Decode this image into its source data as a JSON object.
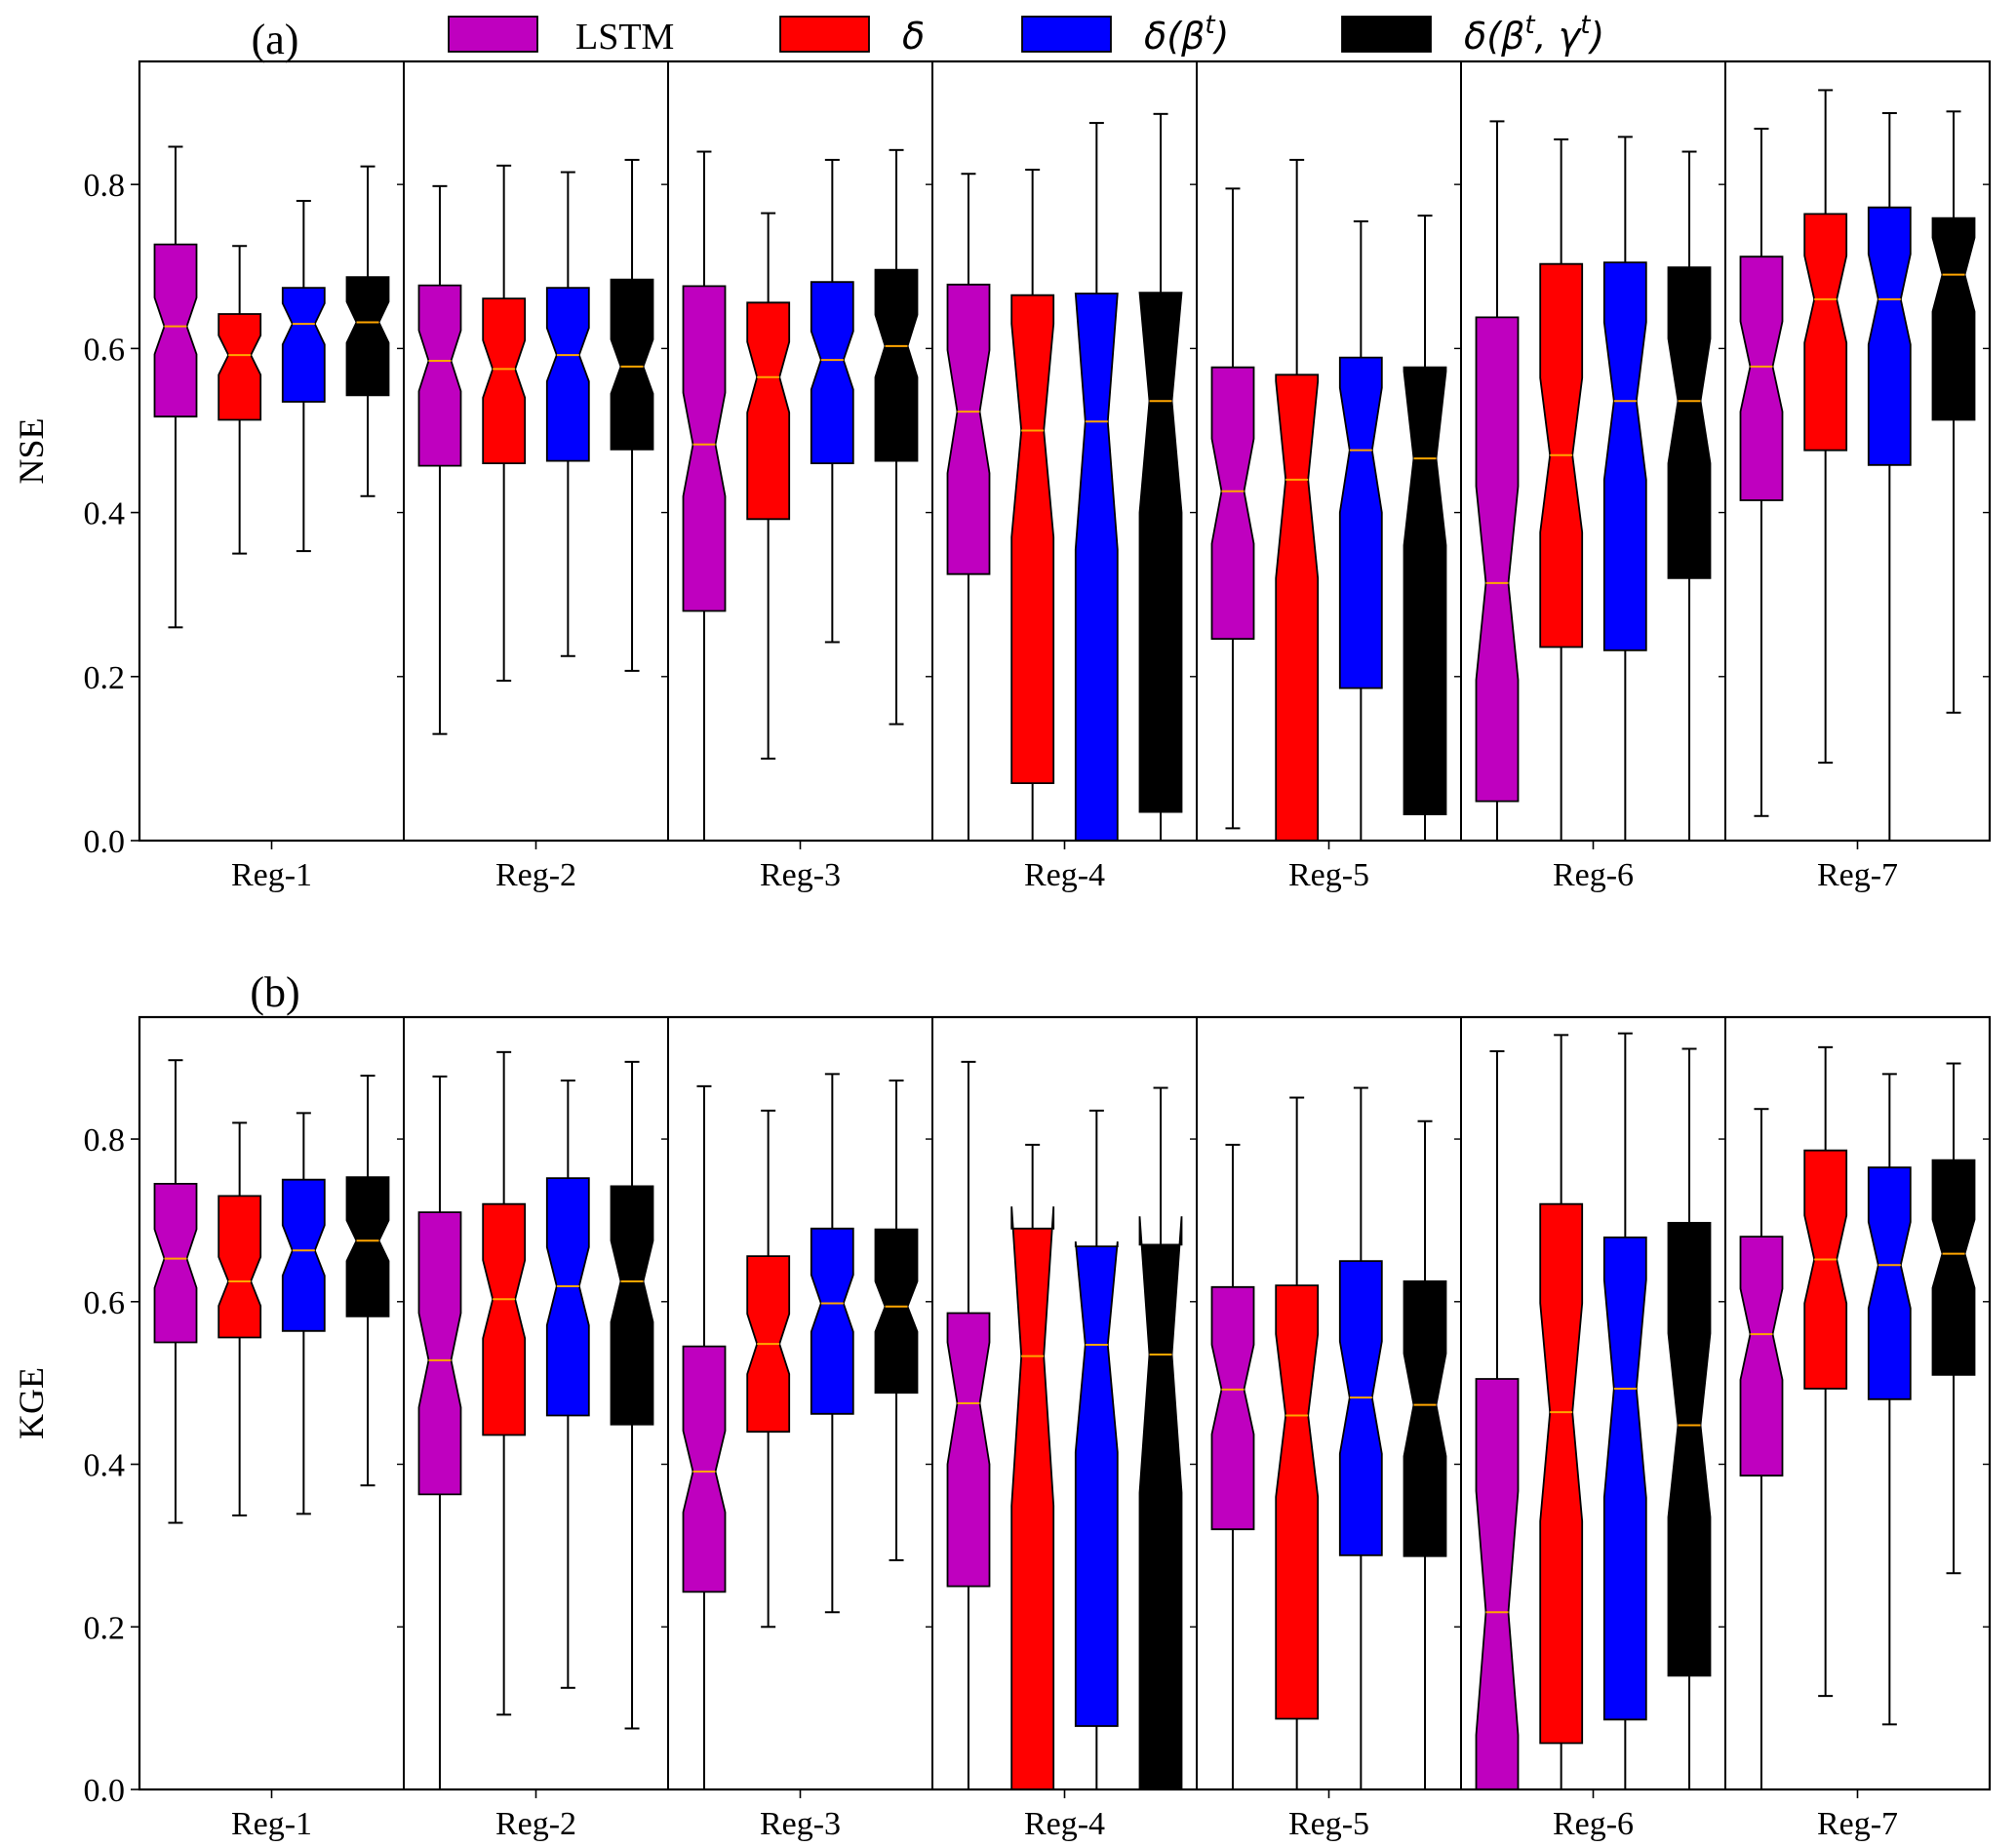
{
  "chart_data": [
    {
      "type": "boxplot",
      "panel_label": "(a)",
      "ylabel": "NSE",
      "ylim": [
        0.0,
        0.95
      ],
      "yticks": [
        "0.0",
        "0.2",
        "0.4",
        "0.6",
        "0.8"
      ],
      "categories": [
        "Reg-1",
        "Reg-2",
        "Reg-3",
        "Reg-4",
        "Reg-5",
        "Reg-6",
        "Reg-7"
      ],
      "series": [
        {
          "name": "LSTM",
          "color": "#bf00bf",
          "boxes": [
            {
              "whislo": 0.26,
              "q1": 0.517,
              "med": 0.627,
              "q3": 0.727,
              "whishi": 0.846,
              "ci": [
                0.593,
                0.662
              ]
            },
            {
              "whislo": 0.13,
              "q1": 0.457,
              "med": 0.585,
              "q3": 0.677,
              "whishi": 0.798,
              "ci": [
                0.548,
                0.622
              ]
            },
            {
              "whislo": 0.0,
              "q1": 0.28,
              "med": 0.483,
              "q3": 0.676,
              "whishi": 0.84,
              "ci": [
                0.42,
                0.546
              ]
            },
            {
              "whislo": 0.0,
              "q1": 0.325,
              "med": 0.523,
              "q3": 0.678,
              "whishi": 0.813,
              "ci": [
                0.448,
                0.598
              ]
            },
            {
              "whislo": 0.015,
              "q1": 0.246,
              "med": 0.426,
              "q3": 0.577,
              "whishi": 0.795,
              "ci": [
                0.362,
                0.49
              ]
            },
            {
              "whislo": 0.0,
              "q1": 0.048,
              "med": 0.314,
              "q3": 0.638,
              "whishi": 0.877,
              "ci": [
                0.196,
                0.432
              ]
            },
            {
              "whislo": 0.03,
              "q1": 0.415,
              "med": 0.578,
              "q3": 0.712,
              "whishi": 0.868,
              "ci": [
                0.523,
                0.633
              ]
            }
          ]
        },
        {
          "name": "δ",
          "color": "#ff0000",
          "boxes": [
            {
              "whislo": 0.35,
              "q1": 0.513,
              "med": 0.592,
              "q3": 0.642,
              "whishi": 0.725,
              "ci": [
                0.568,
                0.616
              ]
            },
            {
              "whislo": 0.195,
              "q1": 0.46,
              "med": 0.575,
              "q3": 0.661,
              "whishi": 0.823,
              "ci": [
                0.54,
                0.61
              ]
            },
            {
              "whislo": 0.1,
              "q1": 0.392,
              "med": 0.565,
              "q3": 0.656,
              "whishi": 0.765,
              "ci": [
                0.522,
                0.608
              ]
            },
            {
              "whislo": 0.0,
              "q1": 0.07,
              "med": 0.5,
              "q3": 0.665,
              "whishi": 0.818,
              "ci": [
                0.37,
                0.63
              ]
            },
            {
              "whislo": 0.0,
              "q1": 0.0,
              "med": 0.44,
              "q3": 0.568,
              "whishi": 0.83,
              "ci": [
                0.32,
                0.56
              ]
            },
            {
              "whislo": 0.0,
              "q1": 0.236,
              "med": 0.47,
              "q3": 0.703,
              "whishi": 0.855,
              "ci": [
                0.376,
                0.564
              ]
            },
            {
              "whislo": 0.095,
              "q1": 0.476,
              "med": 0.66,
              "q3": 0.764,
              "whishi": 0.915,
              "ci": [
                0.607,
                0.713
              ]
            }
          ]
        },
        {
          "name": "δ(β^t)",
          "color": "#0000ff",
          "boxes": [
            {
              "whislo": 0.353,
              "q1": 0.535,
              "med": 0.63,
              "q3": 0.674,
              "whishi": 0.78,
              "ci": [
                0.605,
                0.655
              ]
            },
            {
              "whislo": 0.225,
              "q1": 0.463,
              "med": 0.592,
              "q3": 0.674,
              "whishi": 0.815,
              "ci": [
                0.56,
                0.625
              ]
            },
            {
              "whislo": 0.242,
              "q1": 0.46,
              "med": 0.586,
              "q3": 0.681,
              "whishi": 0.83,
              "ci": [
                0.55,
                0.621
              ]
            },
            {
              "whislo": 0.0,
              "q1": 0.0,
              "med": 0.511,
              "q3": 0.667,
              "whishi": 0.875,
              "ci": [
                0.355,
                0.667
              ]
            },
            {
              "whislo": 0.0,
              "q1": 0.186,
              "med": 0.476,
              "q3": 0.589,
              "whishi": 0.755,
              "ci": [
                0.4,
                0.552
              ]
            },
            {
              "whislo": 0.0,
              "q1": 0.232,
              "med": 0.536,
              "q3": 0.705,
              "whishi": 0.858,
              "ci": [
                0.44,
                0.632
              ]
            },
            {
              "whislo": 0.0,
              "q1": 0.458,
              "med": 0.66,
              "q3": 0.772,
              "whishi": 0.887,
              "ci": [
                0.605,
                0.715
              ]
            }
          ]
        },
        {
          "name": "δ(β^t, γ^t)",
          "color": "#000000",
          "boxes": [
            {
              "whislo": 0.42,
              "q1": 0.543,
              "med": 0.632,
              "q3": 0.687,
              "whishi": 0.822,
              "ci": [
                0.607,
                0.657
              ]
            },
            {
              "whislo": 0.207,
              "q1": 0.477,
              "med": 0.578,
              "q3": 0.684,
              "whishi": 0.83,
              "ci": [
                0.545,
                0.611
              ]
            },
            {
              "whislo": 0.142,
              "q1": 0.463,
              "med": 0.603,
              "q3": 0.696,
              "whishi": 0.842,
              "ci": [
                0.565,
                0.641
              ]
            },
            {
              "whislo": 0.0,
              "q1": 0.035,
              "med": 0.536,
              "q3": 0.668,
              "whishi": 0.886,
              "ci": [
                0.4,
                0.668
              ]
            },
            {
              "whislo": 0.0,
              "q1": 0.032,
              "med": 0.466,
              "q3": 0.577,
              "whishi": 0.762,
              "ci": [
                0.36,
                0.572
              ]
            },
            {
              "whislo": 0.0,
              "q1": 0.32,
              "med": 0.536,
              "q3": 0.699,
              "whishi": 0.84,
              "ci": [
                0.46,
                0.612
              ]
            },
            {
              "whislo": 0.156,
              "q1": 0.513,
              "med": 0.69,
              "q3": 0.759,
              "whishi": 0.889,
              "ci": [
                0.645,
                0.735
              ]
            }
          ]
        }
      ]
    },
    {
      "type": "boxplot",
      "panel_label": "(b)",
      "ylabel": "KGE",
      "ylim": [
        0.0,
        0.95
      ],
      "yticks": [
        "0.0",
        "0.2",
        "0.4",
        "0.6",
        "0.8"
      ],
      "categories": [
        "Reg-1",
        "Reg-2",
        "Reg-3",
        "Reg-4",
        "Reg-5",
        "Reg-6",
        "Reg-7"
      ],
      "series": [
        {
          "name": "LSTM",
          "color": "#bf00bf",
          "boxes": [
            {
              "whislo": 0.328,
              "q1": 0.55,
              "med": 0.653,
              "q3": 0.745,
              "whishi": 0.897,
              "ci": [
                0.617,
                0.689
              ]
            },
            {
              "whislo": 0.0,
              "q1": 0.363,
              "med": 0.528,
              "q3": 0.71,
              "whishi": 0.877,
              "ci": [
                0.47,
                0.586
              ]
            },
            {
              "whislo": 0.0,
              "q1": 0.243,
              "med": 0.391,
              "q3": 0.545,
              "whishi": 0.865,
              "ci": [
                0.341,
                0.441
              ]
            },
            {
              "whislo": 0.0,
              "q1": 0.25,
              "med": 0.475,
              "q3": 0.586,
              "whishi": 0.895,
              "ci": [
                0.4,
                0.55
              ]
            },
            {
              "whislo": 0.0,
              "q1": 0.32,
              "med": 0.492,
              "q3": 0.618,
              "whishi": 0.793,
              "ci": [
                0.437,
                0.547
              ]
            },
            {
              "whislo": 0.0,
              "q1": 0.0,
              "med": 0.218,
              "q3": 0.505,
              "whishi": 0.908,
              "ci": [
                0.067,
                0.367
              ]
            },
            {
              "whislo": 0.0,
              "q1": 0.386,
              "med": 0.56,
              "q3": 0.68,
              "whishi": 0.837,
              "ci": [
                0.504,
                0.616
              ]
            }
          ]
        },
        {
          "name": "δ",
          "color": "#ff0000",
          "boxes": [
            {
              "whislo": 0.337,
              "q1": 0.556,
              "med": 0.625,
              "q3": 0.73,
              "whishi": 0.82,
              "ci": [
                0.595,
                0.655
              ]
            },
            {
              "whislo": 0.092,
              "q1": 0.436,
              "med": 0.603,
              "q3": 0.72,
              "whishi": 0.907,
              "ci": [
                0.555,
                0.651
              ]
            },
            {
              "whislo": 0.2,
              "q1": 0.44,
              "med": 0.548,
              "q3": 0.656,
              "whishi": 0.835,
              "ci": [
                0.511,
                0.585
              ]
            },
            {
              "whislo": 0.0,
              "q1": 0.0,
              "med": 0.533,
              "q3": 0.69,
              "whishi": 0.793,
              "ci": [
                0.349,
                0.717
              ]
            },
            {
              "whislo": 0.0,
              "q1": 0.087,
              "med": 0.46,
              "q3": 0.62,
              "whishi": 0.851,
              "ci": [
                0.36,
                0.56
              ]
            },
            {
              "whislo": 0.0,
              "q1": 0.057,
              "med": 0.464,
              "q3": 0.72,
              "whishi": 0.928,
              "ci": [
                0.33,
                0.598
              ]
            },
            {
              "whislo": 0.115,
              "q1": 0.493,
              "med": 0.652,
              "q3": 0.786,
              "whishi": 0.913,
              "ci": [
                0.598,
                0.706
              ]
            }
          ]
        },
        {
          "name": "δ(β^t)",
          "color": "#0000ff",
          "boxes": [
            {
              "whislo": 0.339,
              "q1": 0.564,
              "med": 0.663,
              "q3": 0.75,
              "whishi": 0.832,
              "ci": [
                0.632,
                0.694
              ]
            },
            {
              "whislo": 0.125,
              "q1": 0.46,
              "med": 0.619,
              "q3": 0.752,
              "whishi": 0.872,
              "ci": [
                0.571,
                0.667
              ]
            },
            {
              "whislo": 0.218,
              "q1": 0.462,
              "med": 0.598,
              "q3": 0.69,
              "whishi": 0.88,
              "ci": [
                0.563,
                0.633
              ]
            },
            {
              "whislo": 0.0,
              "q1": 0.078,
              "med": 0.547,
              "q3": 0.668,
              "whishi": 0.835,
              "ci": [
                0.415,
                0.674
              ]
            },
            {
              "whislo": 0.0,
              "q1": 0.288,
              "med": 0.482,
              "q3": 0.65,
              "whishi": 0.863,
              "ci": [
                0.413,
                0.551
              ]
            },
            {
              "whislo": 0.0,
              "q1": 0.086,
              "med": 0.493,
              "q3": 0.679,
              "whishi": 0.93,
              "ci": [
                0.359,
                0.627
              ]
            },
            {
              "whislo": 0.08,
              "q1": 0.48,
              "med": 0.645,
              "q3": 0.765,
              "whishi": 0.88,
              "ci": [
                0.592,
                0.698
              ]
            }
          ]
        },
        {
          "name": "δ(β^t, γ^t)",
          "color": "#000000",
          "boxes": [
            {
              "whislo": 0.374,
              "q1": 0.582,
              "med": 0.675,
              "q3": 0.753,
              "whishi": 0.878,
              "ci": [
                0.65,
                0.7
              ]
            },
            {
              "whislo": 0.075,
              "q1": 0.449,
              "med": 0.625,
              "q3": 0.742,
              "whishi": 0.895,
              "ci": [
                0.575,
                0.675
              ]
            },
            {
              "whislo": 0.282,
              "q1": 0.488,
              "med": 0.594,
              "q3": 0.689,
              "whishi": 0.872,
              "ci": [
                0.563,
                0.625
              ]
            },
            {
              "whislo": 0.0,
              "q1": 0.0,
              "med": 0.535,
              "q3": 0.67,
              "whishi": 0.863,
              "ci": [
                0.365,
                0.705
              ]
            },
            {
              "whislo": 0.0,
              "q1": 0.287,
              "med": 0.473,
              "q3": 0.625,
              "whishi": 0.822,
              "ci": [
                0.41,
                0.536
              ]
            },
            {
              "whislo": 0.0,
              "q1": 0.14,
              "med": 0.448,
              "q3": 0.697,
              "whishi": 0.911,
              "ci": [
                0.335,
                0.561
              ]
            },
            {
              "whislo": 0.266,
              "q1": 0.51,
              "med": 0.659,
              "q3": 0.774,
              "whishi": 0.893,
              "ci": [
                0.617,
                0.701
              ]
            }
          ]
        }
      ]
    }
  ],
  "legend": {
    "placement": "top",
    "entries": [
      {
        "label": "LSTM",
        "color": "#bf00bf",
        "math": false
      },
      {
        "base": "δ",
        "color": "#ff0000",
        "math": true,
        "parts": []
      },
      {
        "base": "δ(β",
        "color": "#0000ff",
        "math": true,
        "parts": [
          "t",
          ")"
        ]
      },
      {
        "base": "δ(β",
        "color": "#000000",
        "math": true,
        "parts": [
          "t",
          ", γ",
          "t",
          ")"
        ]
      }
    ]
  },
  "median_color": "#ffa500"
}
